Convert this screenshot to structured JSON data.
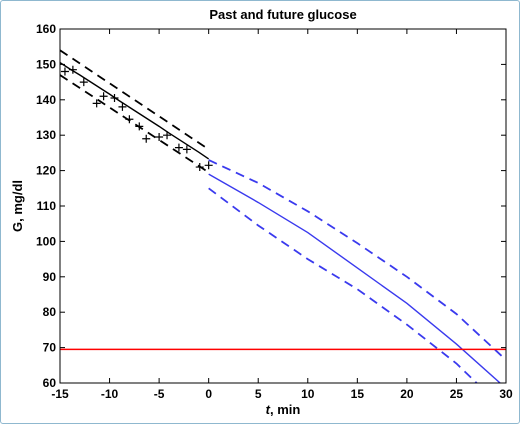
{
  "chart_data": {
    "type": "line",
    "title": "Past and future glucose",
    "xlabel_italic": "t",
    "xlabel_rest": ", min",
    "ylabel": "G, mg/dl",
    "xlim": [
      -15,
      30
    ],
    "ylim": [
      60,
      160
    ],
    "xticks": [
      -15,
      -10,
      -5,
      0,
      5,
      10,
      15,
      20,
      25,
      30
    ],
    "yticks": [
      60,
      70,
      80,
      90,
      100,
      110,
      120,
      130,
      140,
      150,
      160
    ],
    "grid": false,
    "series": [
      {
        "role": "past-mean",
        "color": "#000000",
        "dash": "solid",
        "x": [
          -15,
          -14,
          -13,
          -12,
          -11,
          -10,
          -9,
          -8,
          -7,
          -6,
          -5,
          -4,
          -3,
          -2,
          -1,
          0
        ],
        "y": [
          150.5,
          148.7,
          147.0,
          145.2,
          143.4,
          141.6,
          139.7,
          137.9,
          136.1,
          134.3,
          132.5,
          130.6,
          128.8,
          127.0,
          125.2,
          123.3
        ]
      },
      {
        "role": "past-upper",
        "color": "#000000",
        "dash": "dashed",
        "x": [
          -15,
          0
        ],
        "y": [
          154.0,
          126.0
        ]
      },
      {
        "role": "past-lower",
        "color": "#000000",
        "dash": "dashed",
        "x": [
          -15,
          0
        ],
        "y": [
          147.0,
          119.5
        ]
      },
      {
        "role": "future-mean",
        "color": "#3a3aee",
        "dash": "solid",
        "x": [
          0,
          5,
          10,
          15,
          20,
          25,
          30
        ],
        "y": [
          119.0,
          111.0,
          102.5,
          92.5,
          82.5,
          71.0,
          58.5
        ]
      },
      {
        "role": "future-upper",
        "color": "#3a3aee",
        "dash": "dashed",
        "x": [
          0,
          5,
          10,
          15,
          20,
          25,
          30
        ],
        "y": [
          123.0,
          116.5,
          108.5,
          99.5,
          90.0,
          79.5,
          66.5
        ]
      },
      {
        "role": "future-lower",
        "color": "#3a3aee",
        "dash": "dashed",
        "x": [
          0,
          5,
          10,
          15,
          20,
          25,
          30
        ],
        "y": [
          115.0,
          104.5,
          95.0,
          86.5,
          76.5,
          65.5,
          52.0
        ]
      },
      {
        "role": "threshold",
        "color": "#ff0000",
        "dash": "solid",
        "x": [
          -15,
          30
        ],
        "y": [
          69.5,
          69.5
        ]
      }
    ],
    "markers": {
      "symbol": "+",
      "color": "#000000",
      "points": [
        [
          -14.5,
          148.0
        ],
        [
          -13.7,
          148.5
        ],
        [
          -12.6,
          145.0
        ],
        [
          -11.3,
          139.0
        ],
        [
          -10.6,
          141.0
        ],
        [
          -9.5,
          140.5
        ],
        [
          -8.7,
          138.0
        ],
        [
          -8.0,
          134.5
        ],
        [
          -7.0,
          132.5
        ],
        [
          -6.3,
          129.0
        ],
        [
          -5.0,
          129.5
        ],
        [
          -4.2,
          130.0
        ],
        [
          -3.0,
          126.5
        ],
        [
          -2.2,
          126.0
        ],
        [
          -0.9,
          121.0
        ],
        [
          0.0,
          121.5
        ]
      ]
    }
  }
}
